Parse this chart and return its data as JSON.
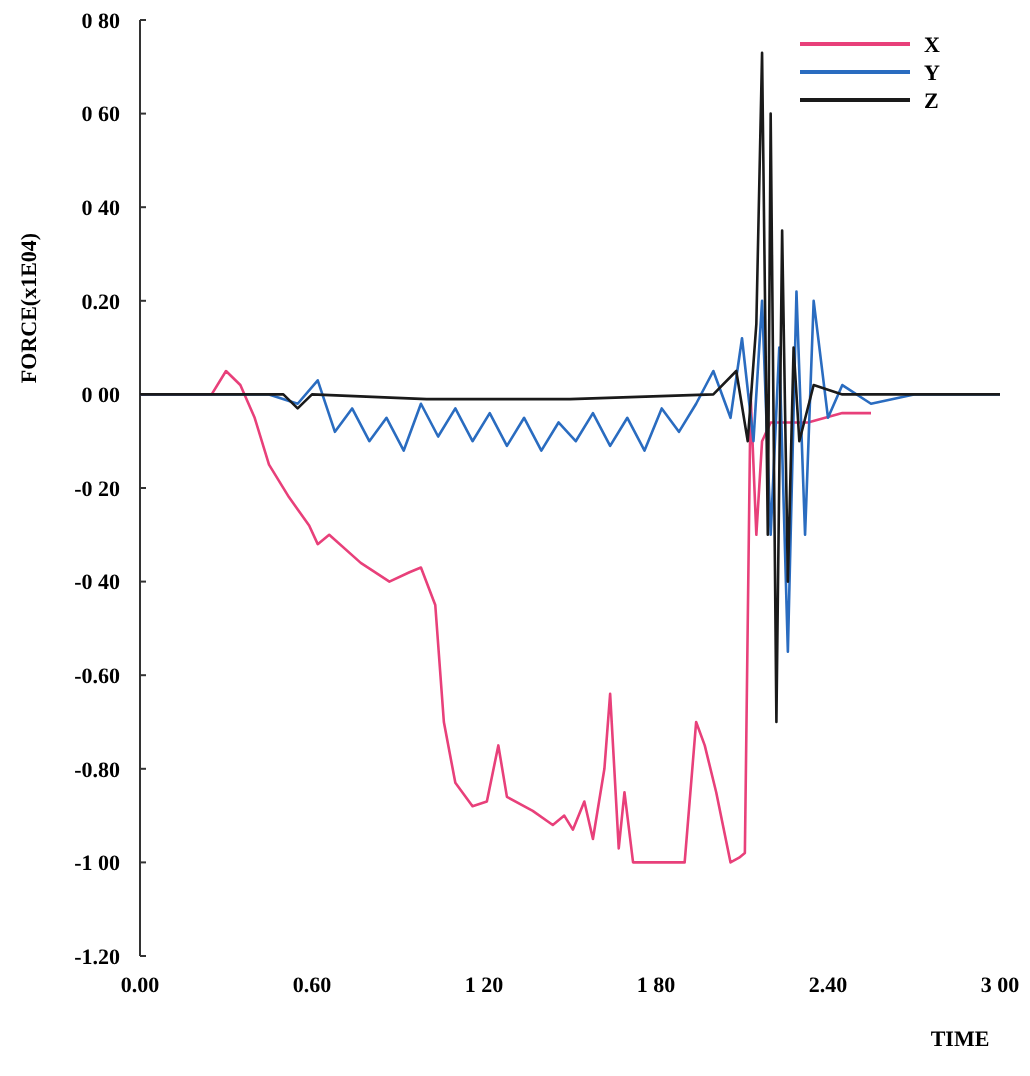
{
  "chart_data": {
    "type": "line",
    "xlabel": "TIME",
    "ylabel": "FORCE(x1E04)",
    "xlim": [
      0,
      3
    ],
    "ylim": [
      -1.2,
      0.8
    ],
    "xticks": [
      {
        "value": 0,
        "label": "0.00"
      },
      {
        "value": 0.6,
        "label": "0.60"
      },
      {
        "value": 1.2,
        "label": "1 20"
      },
      {
        "value": 1.8,
        "label": "1 80"
      },
      {
        "value": 2.4,
        "label": "2.40"
      },
      {
        "value": 3,
        "label": "3 00"
      }
    ],
    "yticks": [
      {
        "value": 0.8,
        "label": "0 80"
      },
      {
        "value": 0.6,
        "label": "0 60"
      },
      {
        "value": 0.4,
        "label": "0 40"
      },
      {
        "value": 0.2,
        "label": "0.20"
      },
      {
        "value": 0,
        "label": "0 00"
      },
      {
        "value": -0.2,
        "label": "-0 20"
      },
      {
        "value": -0.4,
        "label": "-0 40"
      },
      {
        "value": -0.6,
        "label": "-0.60"
      },
      {
        "value": -0.8,
        "label": "-0.80"
      },
      {
        "value": -1,
        "label": "-1 00"
      },
      {
        "value": -1.2,
        "label": "-1.20"
      }
    ],
    "legend": "top right",
    "grid": false,
    "series": [
      {
        "name": "X",
        "color": "#e8407a",
        "x": [
          0,
          0.25,
          0.3,
          0.35,
          0.4,
          0.45,
          0.52,
          0.59,
          0.62,
          0.66,
          0.77,
          0.87,
          0.94,
          0.98,
          1.03,
          1.06,
          1.1,
          1.16,
          1.21,
          1.25,
          1.28,
          1.37,
          1.44,
          1.48,
          1.51,
          1.55,
          1.58,
          1.62,
          1.64,
          1.67,
          1.69,
          1.72,
          1.79,
          1.9,
          1.94,
          1.97,
          2.01,
          2.06,
          2.09,
          2.11,
          2.13,
          2.15,
          2.17,
          2.2,
          2.33,
          2.45,
          2.55
        ],
        "values": [
          0,
          0,
          0.05,
          0.02,
          -0.05,
          -0.15,
          -0.22,
          -0.28,
          -0.32,
          -0.3,
          -0.36,
          -0.4,
          -0.38,
          -0.37,
          -0.45,
          -0.7,
          -0.83,
          -0.88,
          -0.87,
          -0.75,
          -0.86,
          -0.89,
          -0.92,
          -0.9,
          -0.93,
          -0.87,
          -0.95,
          -0.8,
          -0.64,
          -0.97,
          -0.85,
          -1,
          -1,
          -1,
          -0.7,
          -0.75,
          -0.85,
          -1,
          -0.99,
          -0.98,
          0,
          -0.3,
          -0.1,
          -0.06,
          -0.06,
          -0.04,
          -0.04
        ]
      },
      {
        "name": "Y",
        "color": "#2a6cc0",
        "x": [
          0,
          0.45,
          0.55,
          0.62,
          0.68,
          0.74,
          0.8,
          0.86,
          0.92,
          0.98,
          1.04,
          1.1,
          1.16,
          1.22,
          1.28,
          1.34,
          1.4,
          1.46,
          1.52,
          1.58,
          1.64,
          1.7,
          1.76,
          1.82,
          1.88,
          1.94,
          2.0,
          2.06,
          2.1,
          2.14,
          2.17,
          2.2,
          2.23,
          2.26,
          2.29,
          2.32,
          2.35,
          2.4,
          2.45,
          2.55,
          2.7,
          3.0
        ],
        "values": [
          0,
          0,
          -0.02,
          0.03,
          -0.08,
          -0.03,
          -0.1,
          -0.05,
          -0.12,
          -0.02,
          -0.09,
          -0.03,
          -0.1,
          -0.04,
          -0.11,
          -0.05,
          -0.12,
          -0.06,
          -0.1,
          -0.04,
          -0.11,
          -0.05,
          -0.12,
          -0.03,
          -0.08,
          -0.02,
          0.05,
          -0.05,
          0.12,
          -0.1,
          0.2,
          -0.3,
          0.1,
          -0.55,
          0.22,
          -0.3,
          0.2,
          -0.05,
          0.02,
          -0.02,
          0,
          0
        ]
      },
      {
        "name": "Z",
        "color": "#1a1a1a",
        "x": [
          0,
          0.5,
          0.55,
          0.6,
          1.0,
          1.5,
          2.0,
          2.08,
          2.12,
          2.15,
          2.17,
          2.19,
          2.2,
          2.22,
          2.24,
          2.26,
          2.28,
          2.3,
          2.35,
          2.45,
          3.0
        ],
        "values": [
          0,
          0,
          -0.03,
          0,
          -0.01,
          -0.01,
          0,
          0.05,
          -0.1,
          0.15,
          0.73,
          -0.3,
          0.6,
          -0.7,
          0.35,
          -0.4,
          0.1,
          -0.1,
          0.02,
          0,
          0
        ]
      }
    ]
  }
}
